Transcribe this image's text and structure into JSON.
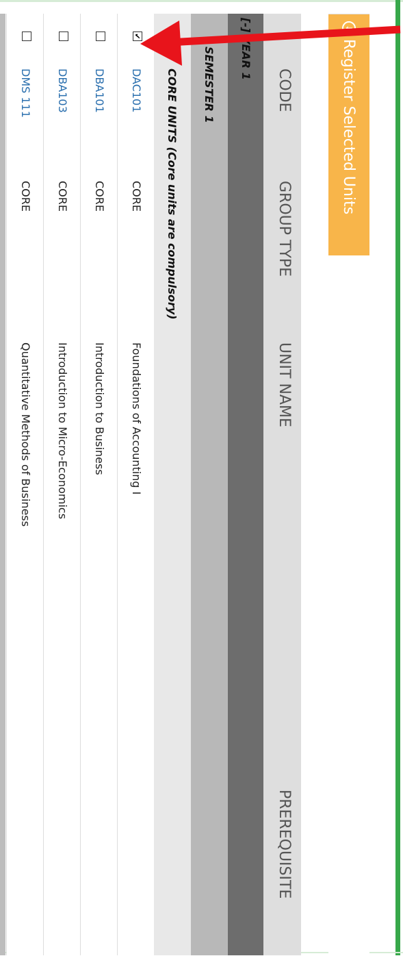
{
  "toolbar": {
    "register_label": "Register Selected Units",
    "register_icon": "circle-arrow-down-icon"
  },
  "table": {
    "headers": {
      "code": "CODE",
      "group_type": "GROUP TYPE",
      "unit_name": "UNIT NAME",
      "prerequisite": "PREREQUISITE"
    },
    "year_label": "[-] YEAR 1",
    "semester_label": "SEMESTER 1",
    "core_label": "CORE UNITS (Core units are compulsory)",
    "rows": [
      {
        "checked": true,
        "code": "DAC101",
        "type": "CORE",
        "name": "Foundations of Accounting I"
      },
      {
        "checked": false,
        "code": "DBA101",
        "type": "CORE",
        "name": "Introduction to Business"
      },
      {
        "checked": false,
        "code": "DBA103",
        "type": "CORE",
        "name": "Introduction to Micro-Economics"
      },
      {
        "checked": false,
        "code": "DMS 111",
        "type": "CORE",
        "name": "Quantitative Methods of Business"
      }
    ]
  },
  "colors": {
    "accent_button": "#f8b54a",
    "link": "#2a6fae",
    "annotation_arrow": "#e8141b",
    "frame_green": "#37a84a"
  }
}
